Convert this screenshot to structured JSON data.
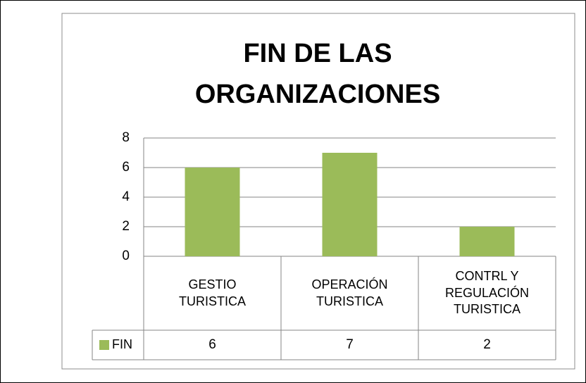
{
  "chart_data": {
    "type": "bar",
    "title": "FIN DE LAS ORGANIZACIONES",
    "categories": [
      "GESTIO TURISTICA",
      "OPERACIÓN TURISTICA",
      "CONTRL Y REGULACIÓN TURISTICA"
    ],
    "series": [
      {
        "name": "FIN",
        "color": "#9bbb59",
        "values": [
          6,
          7,
          2
        ]
      }
    ],
    "ylim": [
      0,
      8
    ],
    "yticks": [
      0,
      2,
      4,
      6,
      8
    ],
    "grid": true
  }
}
